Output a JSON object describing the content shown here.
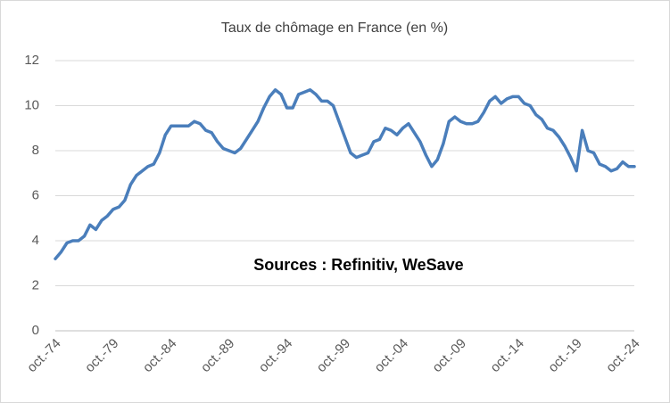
{
  "chart_data": {
    "type": "line",
    "title": "Taux de chômage en France (en %)",
    "annotation": "Sources : Refinitiv, WeSave",
    "categories": [
      "oct.-74",
      null,
      null,
      null,
      null,
      null,
      null,
      null,
      null,
      null,
      "oct.-79",
      null,
      null,
      null,
      null,
      null,
      null,
      null,
      null,
      null,
      "oct.-84",
      null,
      null,
      null,
      null,
      null,
      null,
      null,
      null,
      null,
      "oct.-89",
      null,
      null,
      null,
      null,
      null,
      null,
      null,
      null,
      null,
      "oct.-94",
      null,
      null,
      null,
      null,
      null,
      null,
      null,
      null,
      null,
      "oct.-99",
      null,
      null,
      null,
      null,
      null,
      null,
      null,
      null,
      null,
      "oct.-04",
      null,
      null,
      null,
      null,
      null,
      null,
      null,
      null,
      null,
      "oct.-09",
      null,
      null,
      null,
      null,
      null,
      null,
      null,
      null,
      null,
      "oct.-14",
      null,
      null,
      null,
      null,
      null,
      null,
      null,
      null,
      null,
      "oct.-19",
      null,
      null,
      null,
      null,
      null,
      null,
      null,
      null,
      null,
      "oct.-24"
    ],
    "values": [
      3.2,
      3.5,
      3.9,
      4.0,
      4.0,
      4.2,
      4.7,
      4.5,
      4.9,
      5.1,
      5.4,
      5.5,
      5.8,
      6.5,
      6.9,
      7.1,
      7.3,
      7.4,
      7.9,
      8.7,
      9.1,
      9.1,
      9.1,
      9.1,
      9.3,
      9.2,
      8.9,
      8.8,
      8.4,
      8.1,
      8.0,
      7.9,
      8.1,
      8.5,
      8.9,
      9.3,
      9.9,
      10.4,
      10.7,
      10.5,
      9.9,
      9.9,
      10.5,
      10.6,
      10.7,
      10.5,
      10.2,
      10.2,
      10.0,
      9.3,
      8.6,
      7.9,
      7.7,
      7.8,
      7.9,
      8.4,
      8.5,
      9.0,
      8.9,
      8.7,
      9.0,
      9.2,
      8.8,
      8.4,
      7.8,
      7.3,
      7.6,
      8.3,
      9.3,
      9.5,
      9.3,
      9.2,
      9.2,
      9.3,
      9.7,
      10.2,
      10.4,
      10.1,
      10.3,
      10.4,
      10.4,
      10.1,
      10.0,
      9.6,
      9.4,
      9.0,
      8.9,
      8.6,
      8.2,
      7.7,
      7.1,
      8.9,
      8.0,
      7.9,
      7.4,
      7.3,
      7.1,
      7.2,
      7.5,
      7.3,
      7.3
    ],
    "color": "#4a7ebb",
    "ylim": [
      0,
      12
    ],
    "yticks": [
      0,
      2,
      4,
      6,
      8,
      10,
      12
    ],
    "grid": true
  }
}
